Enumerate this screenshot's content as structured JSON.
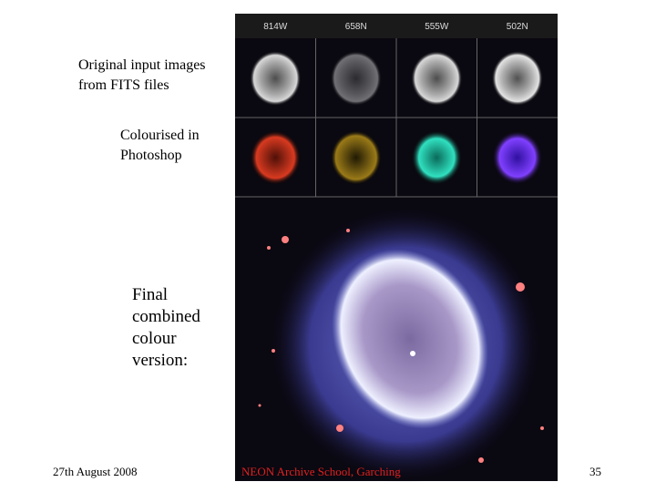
{
  "slide": {
    "labels": [
      {
        "lines": [
          "Original input images",
          "from FITS files"
        ]
      },
      {
        "lines": [
          "Colourised in",
          "Photoshop"
        ]
      },
      {
        "lines": [
          "Final",
          "combined",
          "colour",
          "version:"
        ]
      }
    ],
    "filters": [
      "814W",
      "658N",
      "555W",
      "502N"
    ],
    "footer": {
      "date": "27th August 2008",
      "event": "NEON Archive School, Garching",
      "page": "35"
    }
  }
}
